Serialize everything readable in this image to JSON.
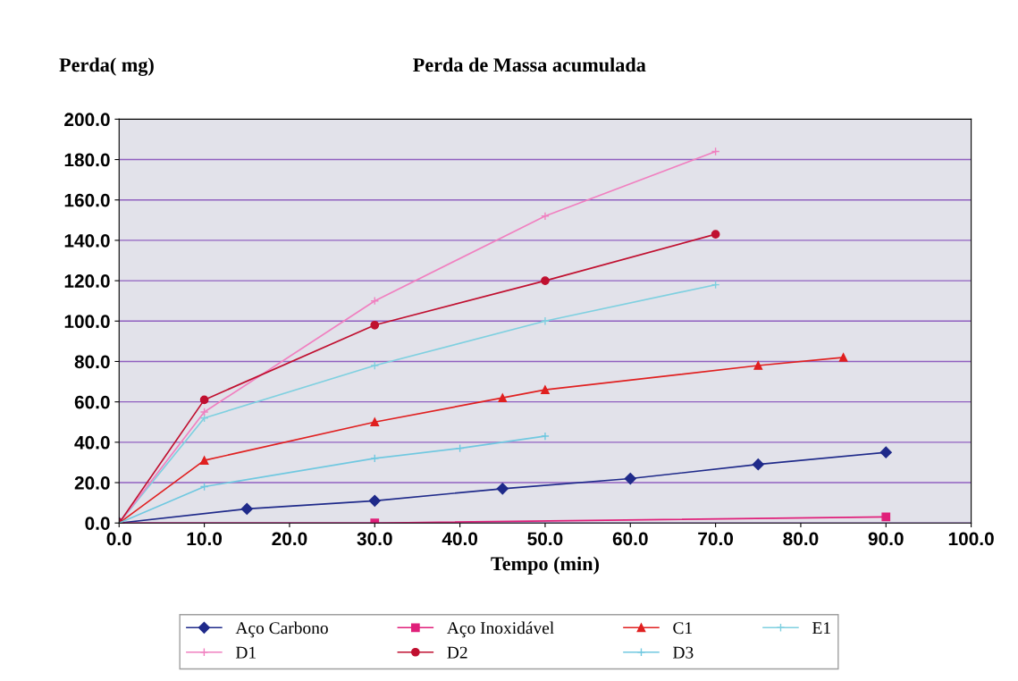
{
  "chart_data": {
    "type": "line",
    "title": "Perda de Massa acumulada",
    "xlabel": "Tempo (min)",
    "ylabel": "Perda( mg)",
    "xlim": [
      0,
      100
    ],
    "ylim": [
      0,
      200
    ],
    "xticks": [
      {
        "value": 0,
        "label": "0.0"
      },
      {
        "value": 10,
        "label": "10.0"
      },
      {
        "value": 20,
        "label": "20.0"
      },
      {
        "value": 30,
        "label": "30.0"
      },
      {
        "value": 40,
        "label": "40.0"
      },
      {
        "value": 50,
        "label": "50.0"
      },
      {
        "value": 60,
        "label": "60.0"
      },
      {
        "value": 70,
        "label": "70.0"
      },
      {
        "value": 80,
        "label": "80.0"
      },
      {
        "value": 90,
        "label": "90.0"
      },
      {
        "value": 100,
        "label": "100.0"
      }
    ],
    "yticks": [
      {
        "value": 0,
        "label": "0.0"
      },
      {
        "value": 20,
        "label": "20.0"
      },
      {
        "value": 40,
        "label": "40.0"
      },
      {
        "value": 60,
        "label": "60.0"
      },
      {
        "value": 80,
        "label": "80.0"
      },
      {
        "value": 100,
        "label": "100.0"
      },
      {
        "value": 120,
        "label": "120.0"
      },
      {
        "value": 140,
        "label": "140.0"
      },
      {
        "value": 160,
        "label": "160.0"
      },
      {
        "value": 180,
        "label": "180.0"
      },
      {
        "value": 200,
        "label": "200.0"
      }
    ],
    "grid": "y",
    "legend": "bottom",
    "line_style": "solid",
    "series": [
      {
        "name": "Aço Carbono",
        "color": "#1f2a8a",
        "marker": "diamond",
        "x": [
          0,
          15,
          30,
          45,
          60,
          75,
          90
        ],
        "values": [
          0,
          7,
          11,
          17,
          22,
          29,
          35
        ]
      },
      {
        "name": "Aço Inoxidável",
        "color": "#e0207a",
        "marker": "square",
        "x": [
          0,
          30,
          90
        ],
        "values": [
          0,
          0,
          3
        ]
      },
      {
        "name": "C1",
        "color": "#e02020",
        "marker": "triangle",
        "x": [
          0,
          10,
          30,
          45,
          50,
          75,
          85
        ],
        "values": [
          0,
          31,
          50,
          62,
          66,
          78,
          82
        ]
      },
      {
        "name": "E1",
        "color": "#7fd0e0",
        "marker": "cross",
        "x": [
          0,
          10,
          30,
          50,
          70
        ],
        "values": [
          0,
          52,
          78,
          100,
          118
        ]
      },
      {
        "name": "D1",
        "color": "#f080c0",
        "marker": "cross",
        "x": [
          0,
          10,
          30,
          50,
          70
        ],
        "values": [
          0,
          55,
          110,
          152,
          184
        ]
      },
      {
        "name": "D2",
        "color": "#c01030",
        "marker": "circle",
        "x": [
          0,
          10,
          30,
          50,
          70
        ],
        "values": [
          0,
          61,
          98,
          120,
          143
        ]
      },
      {
        "name": "D3",
        "color": "#70c8e0",
        "marker": "cross",
        "x": [
          0,
          10,
          30,
          40,
          50
        ],
        "values": [
          0,
          18,
          32,
          37,
          43
        ]
      }
    ]
  }
}
